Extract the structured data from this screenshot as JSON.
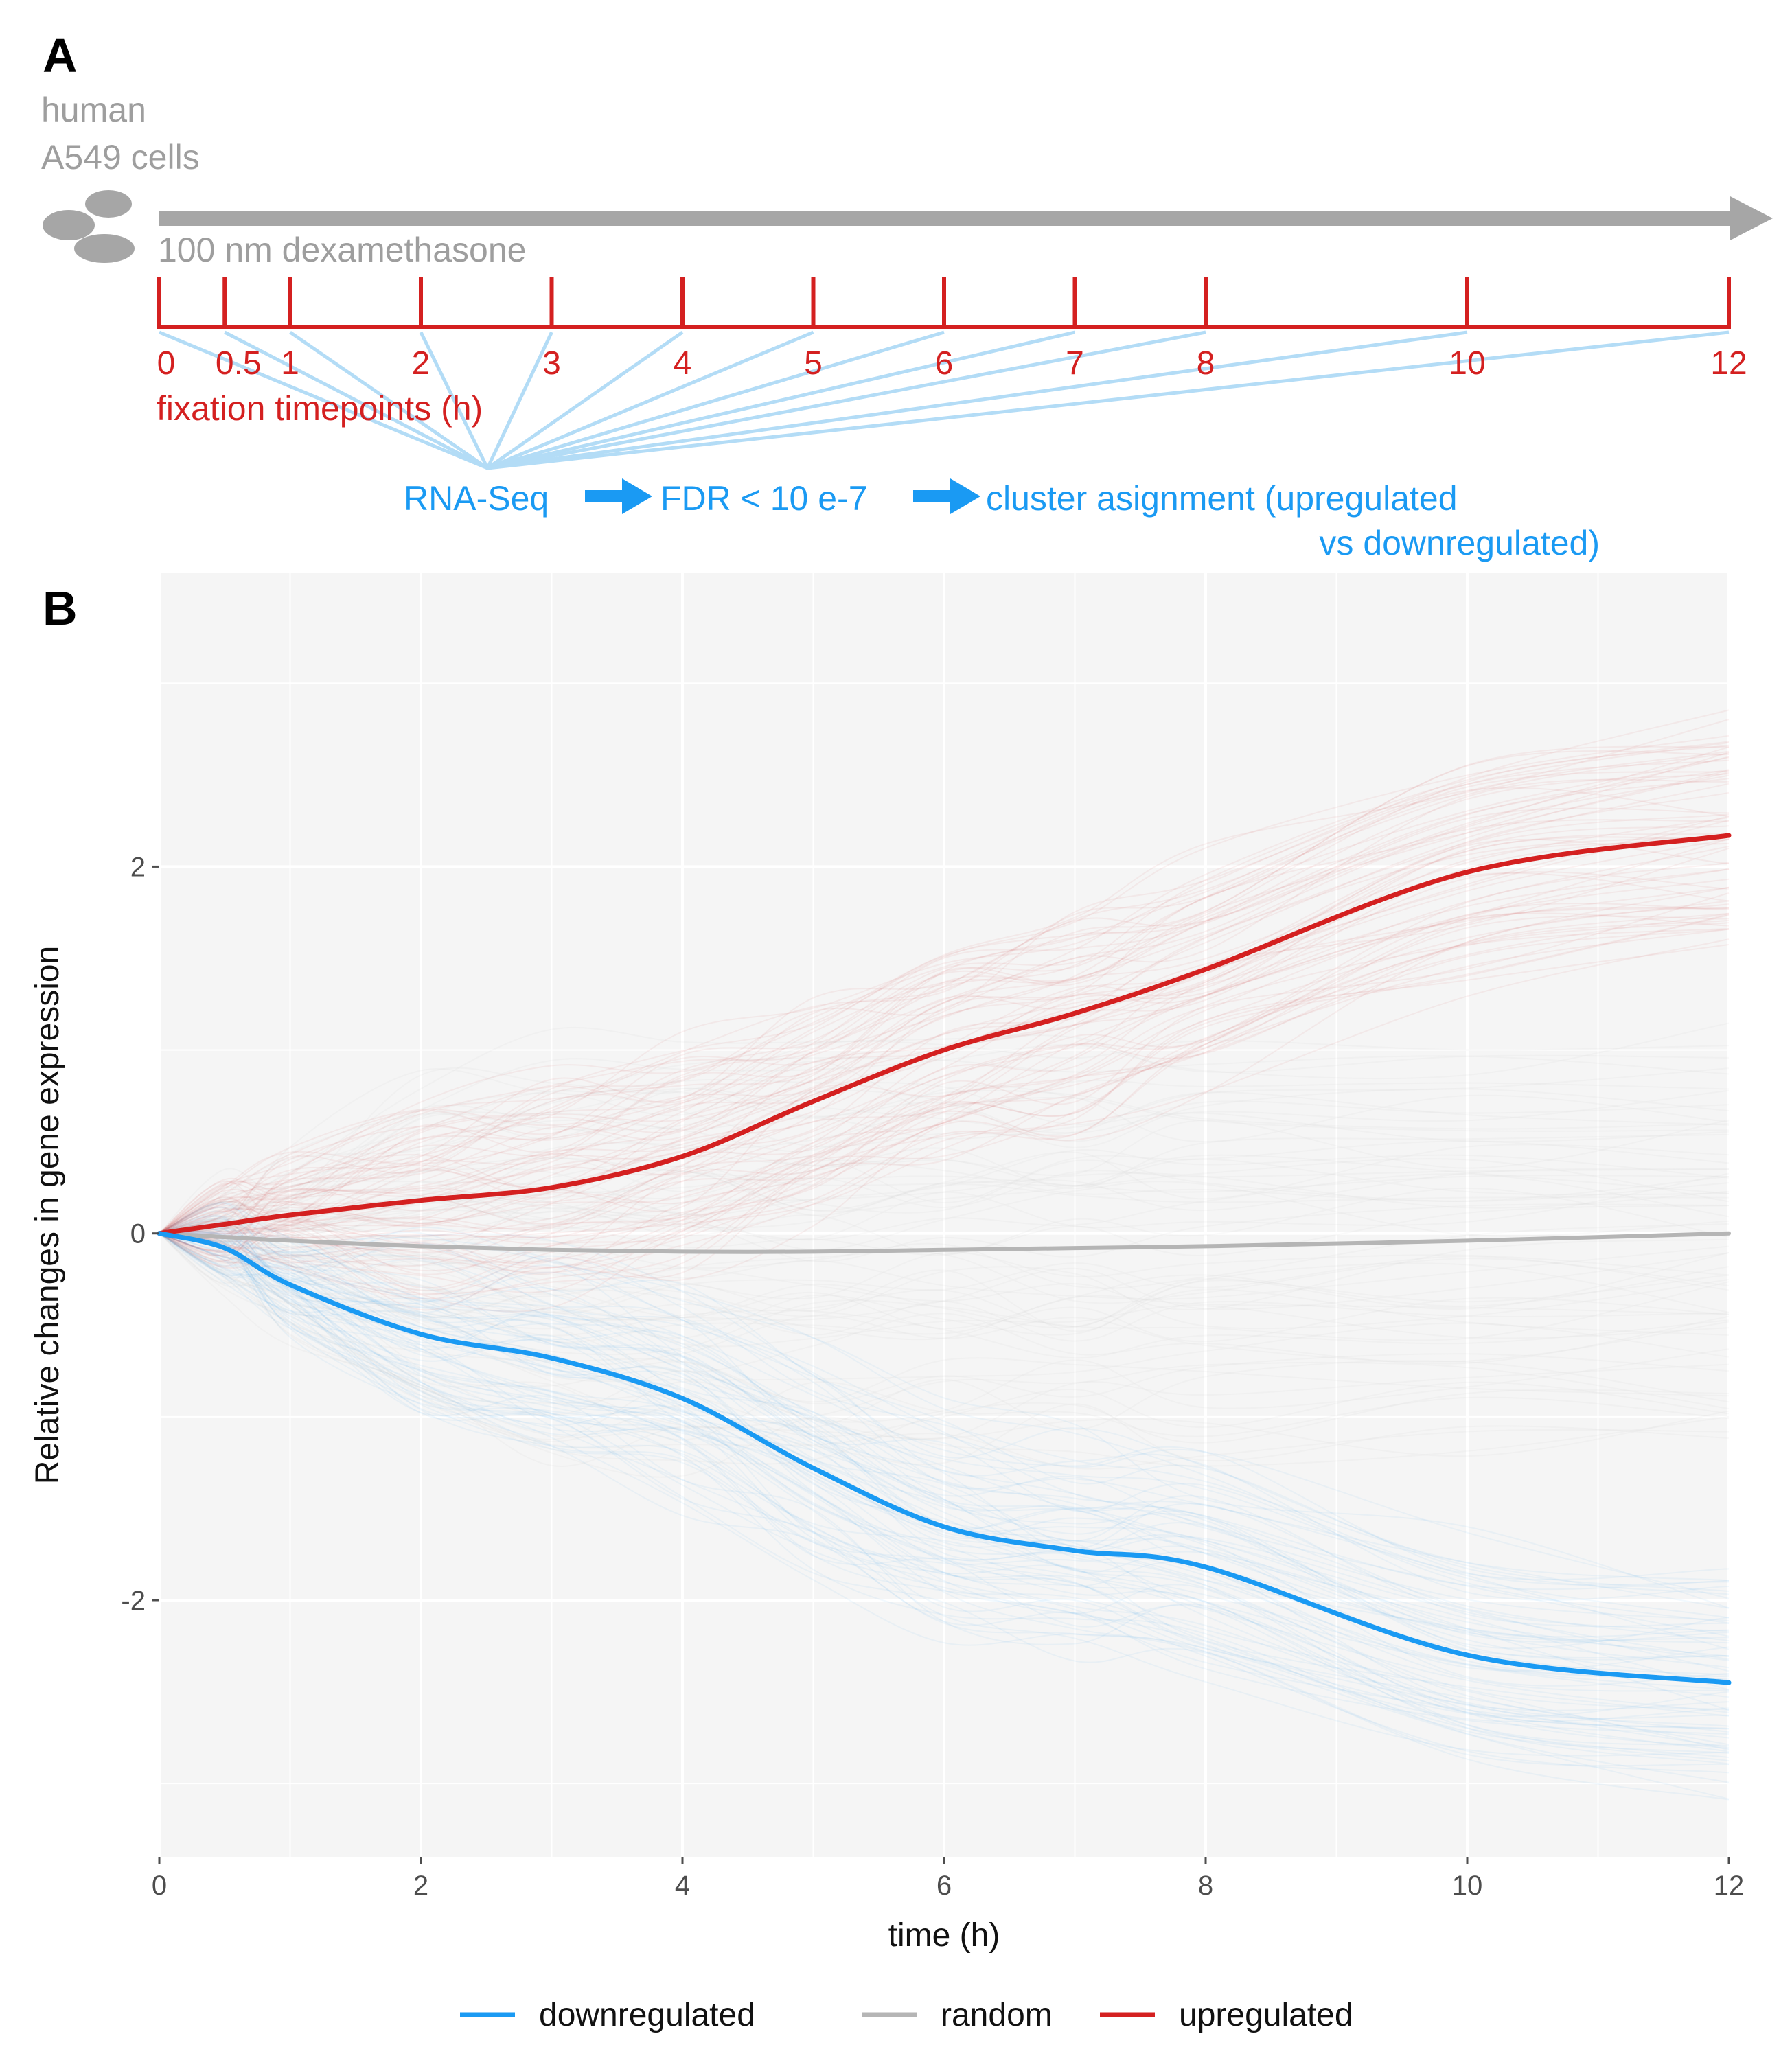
{
  "panel_a": {
    "letter": "A",
    "cells_line1": "human",
    "cells_line2": "A549 cells",
    "treatment": "100 nm dexamethasone",
    "timepoints": [
      "0",
      "0.5",
      "1",
      "2",
      "3",
      "4",
      "5",
      "6",
      "7",
      "8",
      "10",
      "12"
    ],
    "timepoint_values": [
      0,
      0.5,
      1,
      2,
      3,
      4,
      5,
      6,
      7,
      8,
      10,
      12
    ],
    "timepoints_label": "fixation timepoints (h)",
    "pipeline_step1": "RNA-Seq",
    "pipeline_step2": "FDR < 10 e-7",
    "pipeline_step3_line1": "cluster asignment (upregulated",
    "pipeline_step3_line2": "vs downregulated)"
  },
  "panel_b": {
    "letter": "B"
  },
  "colors": {
    "downregulated": "#1a9af3",
    "random": "#b5b5b5",
    "upregulated": "#d42020",
    "panel_background": "#f5f5f5",
    "grey_annotation": "#9e9e9e"
  },
  "chart_data": {
    "type": "line",
    "title": "",
    "xlabel": "time (h)",
    "ylabel": "Relative changes in gene expression",
    "xlim": [
      0,
      12
    ],
    "ylim": [
      -3.4,
      3.6
    ],
    "x_ticks": [
      0,
      2,
      4,
      6,
      8,
      10,
      12
    ],
    "x_tick_labels": [
      "0",
      "2",
      "4",
      "6",
      "8",
      "10",
      "12"
    ],
    "y_ticks": [
      -2,
      0,
      2
    ],
    "y_tick_labels": [
      "-2",
      "0",
      "2"
    ],
    "legend_position": "bottom",
    "grid": true,
    "x": [
      0,
      0.5,
      1,
      2,
      3,
      4,
      5,
      6,
      7,
      8,
      10,
      12
    ],
    "series": [
      {
        "name": "downregulated",
        "values": [
          0,
          -0.08,
          -0.28,
          -0.55,
          -0.68,
          -0.9,
          -1.28,
          -1.6,
          -1.73,
          -1.82,
          -2.3,
          -2.45
        ]
      },
      {
        "name": "random",
        "values": [
          0,
          -0.02,
          -0.04,
          -0.07,
          -0.09,
          -0.1,
          -0.1,
          -0.09,
          -0.08,
          -0.07,
          -0.04,
          0
        ]
      },
      {
        "name": "upregulated",
        "values": [
          0,
          0.05,
          0.1,
          0.18,
          0.25,
          0.42,
          0.72,
          1.0,
          1.2,
          1.44,
          1.97,
          2.17
        ]
      }
    ],
    "legend": [
      "downregulated",
      "random",
      "upregulated"
    ]
  }
}
